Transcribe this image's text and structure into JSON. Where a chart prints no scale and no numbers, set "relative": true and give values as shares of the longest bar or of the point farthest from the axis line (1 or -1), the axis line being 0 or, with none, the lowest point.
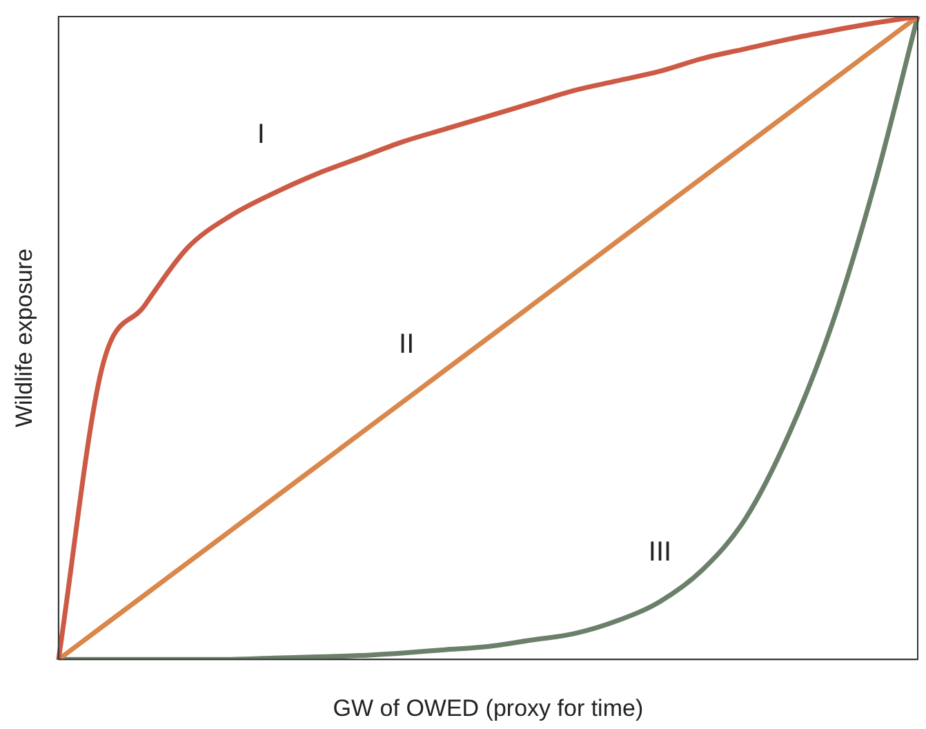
{
  "chart_data": {
    "type": "line",
    "relative": true,
    "xlabel": "GW of OWED (proxy for time)",
    "ylabel": "Wildlife exposure",
    "categories": [
      null,
      null,
      null,
      null,
      null,
      null,
      null,
      null,
      null,
      null,
      null,
      null,
      null,
      null,
      null,
      null,
      null,
      null,
      null,
      null,
      null
    ],
    "legend": false,
    "grid": false,
    "marker": "none",
    "line_style": "solid",
    "tick_labels": false,
    "series": [
      {
        "name": "I",
        "color": "#cc5a44",
        "values": [
          0,
          0.45,
          0.55,
          0.64,
          0.69,
          0.725,
          0.755,
          0.78,
          0.805,
          0.825,
          0.845,
          0.865,
          0.885,
          0.9,
          0.915,
          0.935,
          0.95,
          0.965,
          0.978,
          0.99,
          1
        ]
      },
      {
        "name": "II",
        "color": "#d9874a",
        "values": [
          0,
          0.05,
          0.1,
          0.15,
          0.2,
          0.25,
          0.3,
          0.35,
          0.4,
          0.45,
          0.5,
          0.55,
          0.6,
          0.65,
          0.7,
          0.75,
          0.8,
          0.85,
          0.9,
          0.95,
          1
        ]
      },
      {
        "name": "III",
        "color": "#6b806a",
        "values": [
          0,
          0,
          0,
          0,
          0,
          0.002,
          0.004,
          0.006,
          0.01,
          0.015,
          0.02,
          0.03,
          0.04,
          0.06,
          0.09,
          0.14,
          0.22,
          0.35,
          0.52,
          0.74,
          1
        ]
      }
    ]
  }
}
